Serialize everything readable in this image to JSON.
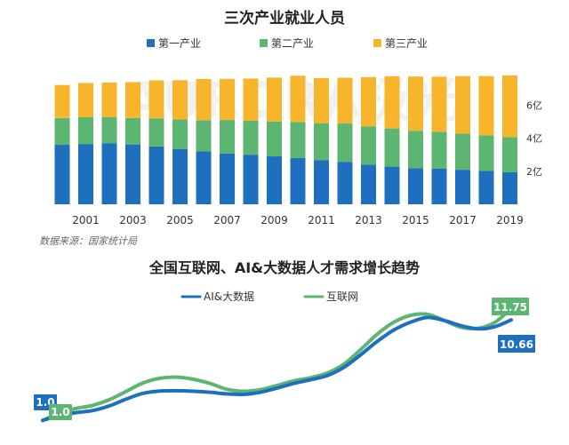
{
  "watermark": "AURORA极光",
  "source": "数据来源：国家统计局",
  "chart_data": [
    {
      "type": "bar",
      "stacked": true,
      "title": "三次产业就业人员",
      "categories": [
        "2000",
        "2001",
        "2002",
        "2003",
        "2004",
        "2005",
        "2006",
        "2007",
        "2008",
        "2009",
        "2010",
        "2011",
        "2012",
        "2013",
        "2014",
        "2015",
        "2016",
        "2017",
        "2018",
        "2019"
      ],
      "x_tick_labels": [
        "2001",
        "2003",
        "2005",
        "2007",
        "2009",
        "2011",
        "2013",
        "2015",
        "2017",
        "2019"
      ],
      "series": [
        {
          "name": "第一产业",
          "color": "#1f6fbf",
          "values": [
            3.6,
            3.65,
            3.7,
            3.62,
            3.5,
            3.35,
            3.2,
            3.08,
            3.0,
            2.9,
            2.8,
            2.66,
            2.57,
            2.4,
            2.28,
            2.19,
            2.15,
            2.09,
            2.03,
            1.94
          ]
        },
        {
          "name": "第二产业",
          "color": "#5cb672",
          "values": [
            1.62,
            1.62,
            1.57,
            1.6,
            1.7,
            1.78,
            1.89,
            2.02,
            2.05,
            2.1,
            2.18,
            2.25,
            2.32,
            2.32,
            2.31,
            2.26,
            2.24,
            2.18,
            2.14,
            2.13
          ]
        },
        {
          "name": "第三产业",
          "color": "#f7b52c",
          "values": [
            2.0,
            2.07,
            2.1,
            2.17,
            2.3,
            2.38,
            2.49,
            2.49,
            2.56,
            2.67,
            2.8,
            2.73,
            2.77,
            2.97,
            3.16,
            3.28,
            3.33,
            3.49,
            3.59,
            3.73
          ]
        }
      ],
      "y_ticks": [
        {
          "value": 2,
          "label": "2亿"
        },
        {
          "value": 4,
          "label": "4亿"
        },
        {
          "value": 6,
          "label": "6亿"
        }
      ],
      "ylim": [
        0,
        8.6
      ],
      "legend_position": "top-center",
      "grid": false
    },
    {
      "type": "line",
      "title": "全国互联网、AI&大数据人才需求增长趋势",
      "x": [
        0,
        1,
        2,
        3,
        4,
        5,
        6,
        7,
        8,
        9,
        10,
        11,
        12,
        13,
        14,
        15,
        16,
        17,
        18,
        19,
        20,
        21,
        22,
        23,
        24,
        25,
        26,
        27,
        28
      ],
      "series": [
        {
          "name": "AI&大数据",
          "color": "#1f6fbf",
          "values": [
            1.0,
            1.45,
            1.75,
            1.95,
            2.4,
            3.05,
            3.6,
            3.82,
            3.85,
            3.8,
            3.7,
            3.55,
            3.5,
            3.7,
            4.1,
            4.55,
            4.9,
            5.3,
            6.1,
            7.3,
            8.6,
            9.7,
            10.45,
            10.9,
            10.6,
            10.1,
            9.8,
            10.0,
            10.66
          ]
        },
        {
          "name": "互联网",
          "color": "#5cb672",
          "values": [
            1.0,
            1.7,
            2.15,
            2.45,
            3.0,
            3.8,
            4.6,
            5.05,
            5.15,
            4.95,
            4.55,
            4.0,
            3.8,
            3.95,
            4.35,
            4.8,
            5.1,
            5.55,
            6.4,
            7.8,
            9.3,
            10.45,
            11.1,
            11.2,
            10.6,
            9.95,
            9.85,
            10.4,
            11.75
          ]
        }
      ],
      "value_labels": [
        {
          "series": "AI&大数据",
          "text": "1.0",
          "x": 0
        },
        {
          "series": "互联网",
          "text": "1.0",
          "x": 0
        },
        {
          "series": "AI&大数据",
          "text": "10.66",
          "x": 28
        },
        {
          "series": "互联网",
          "text": "11.75",
          "x": 28
        }
      ],
      "ylim": [
        0,
        13
      ],
      "legend_position": "top-center",
      "grid": false
    }
  ]
}
